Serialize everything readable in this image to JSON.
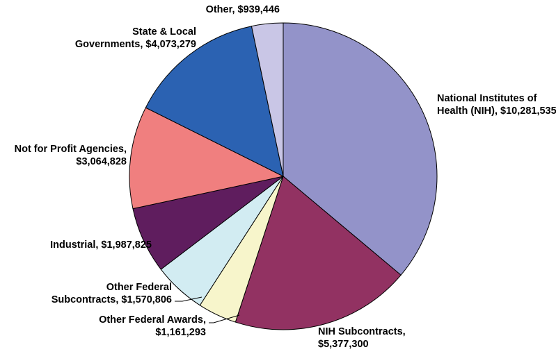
{
  "chart_data": {
    "type": "pie",
    "title": "",
    "slices": [
      {
        "name": "National Institutes of Health (NIH)",
        "value": 10281535,
        "label_lines": [
          "National Institutes of",
          "Health (NIH), $10,281,535"
        ],
        "color": "#9393c9"
      },
      {
        "name": "NIH Subcontracts",
        "value": 5377300,
        "label_lines": [
          "NIH Subcontracts,",
          "$5,377,300"
        ],
        "color": "#923262"
      },
      {
        "name": "Other Federal Awards",
        "value": 1161293,
        "label_lines": [
          "Other Federal Awards,",
          "$1,161,293"
        ],
        "color": "#f7f5cb"
      },
      {
        "name": "Other Federal Subcontracts",
        "value": 1570806,
        "label_lines": [
          "Other Federal",
          "Subcontracts, $1,570,806"
        ],
        "color": "#d2ecf2"
      },
      {
        "name": "Industrial",
        "value": 1987825,
        "label_lines": [
          "Industrial, $1,987,825"
        ],
        "color": "#5f1d5e"
      },
      {
        "name": "Not for Profit Agencies",
        "value": 3064828,
        "label_lines": [
          "Not for Profit Agencies,",
          "$3,064,828"
        ],
        "color": "#f07f7f"
      },
      {
        "name": "State & Local Governments",
        "value": 4073279,
        "label_lines": [
          "State & Local",
          "Governments, $4,073,279"
        ],
        "color": "#2b62b2"
      },
      {
        "name": "Other",
        "value": 939446,
        "label_lines": [
          "Other, $939,446"
        ],
        "color": "#c9c6e6"
      }
    ],
    "start_angle": "12 o'clock",
    "direction": "clockwise",
    "legend": "none"
  }
}
